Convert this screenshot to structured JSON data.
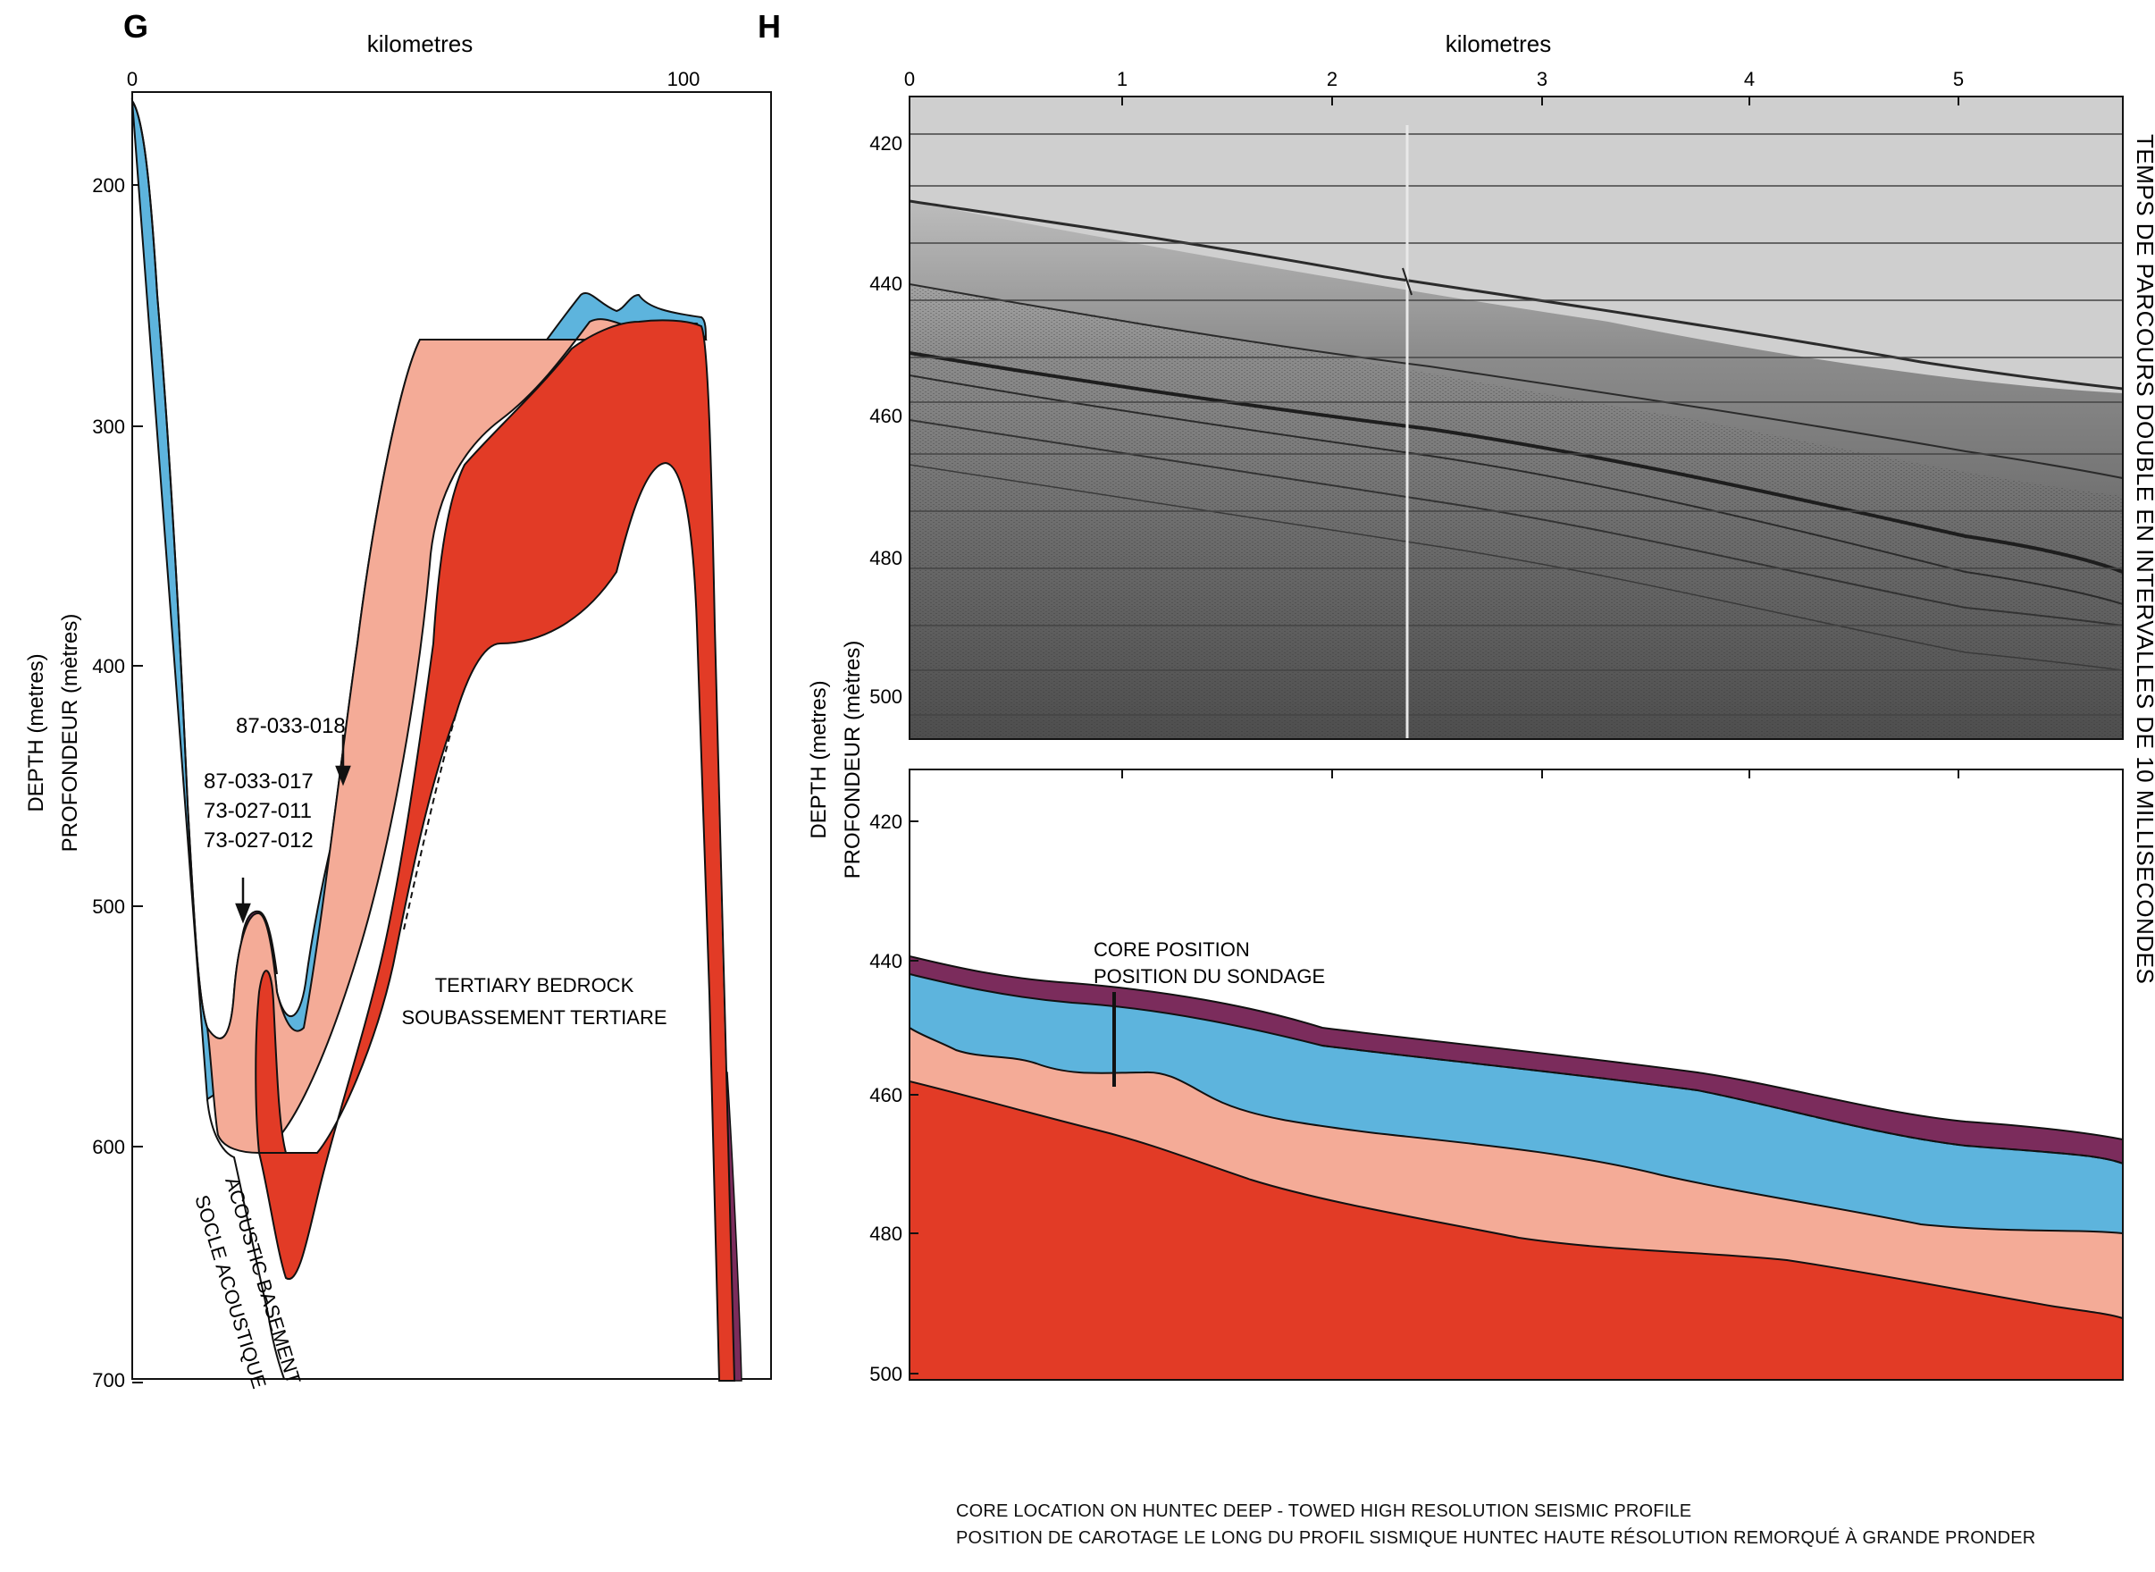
{
  "panel_g": {
    "letter": "G",
    "x_axis_title": "kilometres",
    "x_ticks": [
      "0",
      "100"
    ],
    "y_axis_title_en": "DEPTH (metres)",
    "y_axis_title_fr": "PROFONDEUR (mètres)",
    "y_ticks": [
      "200",
      "300",
      "400",
      "500",
      "600",
      "700"
    ],
    "core_labels": [
      "87-033-018",
      "87-033-017",
      "73-027-011",
      "73-027-012"
    ],
    "bedrock_label_en": "TERTIARY BEDROCK",
    "bedrock_label_fr": "SOUBASSEMENT TERTIARE",
    "basement_label_en": "ACOUSTIC BASEMENT",
    "basement_label_fr": "SOCLE ACOUSTIQUE"
  },
  "panel_h": {
    "letter": "H",
    "x_axis_title": "kilometres",
    "x_ticks": [
      "0",
      "1",
      "2",
      "3",
      "4",
      "5"
    ],
    "profile_y_ticks": [
      "420",
      "440",
      "460",
      "480",
      "500"
    ],
    "section_y_ticks": [
      "420",
      "440",
      "460",
      "480",
      "500"
    ],
    "y_axis_title_en": "DEPTH (metres)",
    "y_axis_title_fr": "PROFONDEUR (mètres)",
    "right_axis_title": "TEMPS DE PARCOURS DOUBLE EN INTERVALLES DE 10 MILLISECONDES",
    "core_position_en": "CORE POSITION",
    "core_position_fr": "POSITION  DU SONDAGE"
  },
  "caption": {
    "line_en": "CORE LOCATION ON HUNTEC DEEP - TOWED HIGH RESOLUTION SEISMIC PROFILE",
    "line_fr": "POSITION DE CAROTAGE LE LONG DU PROFIL SISMIQUE HUNTEC HAUTE RÉSOLUTION REMORQUÉ À GRANDE PRONDER"
  },
  "colors": {
    "bedrock_red": "#e23b26",
    "salmon": "#f4ab97",
    "blue": "#5db4dd",
    "purple": "#7b2c5c",
    "seismic_gray": "#8e8e8e"
  }
}
